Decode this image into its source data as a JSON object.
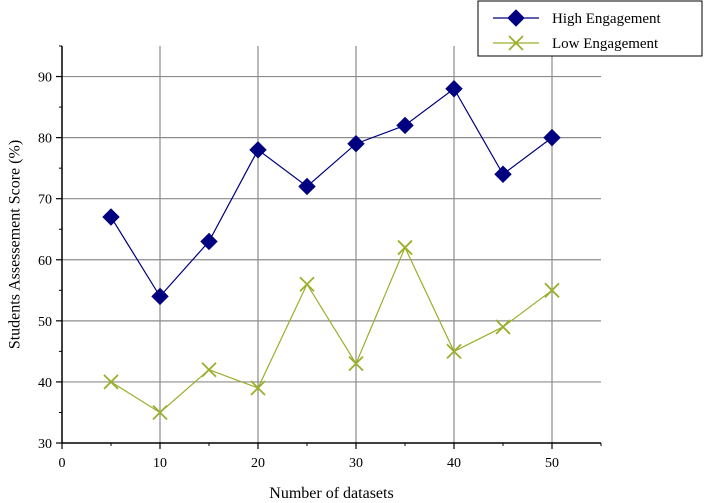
{
  "chart_data": {
    "type": "line",
    "xlabel": "Number of datasets",
    "ylabel": "Students Assessement Score (%)",
    "xlim": [
      0,
      55
    ],
    "ylim": [
      30,
      95
    ],
    "x_ticks": [
      0,
      10,
      20,
      30,
      40,
      50
    ],
    "y_ticks": [
      30,
      40,
      50,
      60,
      70,
      80,
      90
    ],
    "x_tick_labels": [
      "0",
      "10",
      "20",
      "30",
      "40",
      "50"
    ],
    "y_tick_labels": [
      "30",
      "40",
      "50",
      "60",
      "70",
      "80",
      "90"
    ],
    "grid": true,
    "legend_position": "top-right",
    "x": [
      5,
      10,
      15,
      20,
      25,
      30,
      35,
      40,
      45,
      50
    ],
    "series": [
      {
        "name": "High Engagement",
        "values": [
          67,
          54,
          63,
          78,
          72,
          79,
          82,
          88,
          74,
          80
        ],
        "color": "#000080",
        "marker": "diamond"
      },
      {
        "name": "Low Engagement",
        "values": [
          40,
          35,
          42,
          39,
          56,
          43,
          62,
          45,
          49,
          55
        ],
        "color": "#9aaf2a",
        "marker": "x"
      }
    ]
  }
}
